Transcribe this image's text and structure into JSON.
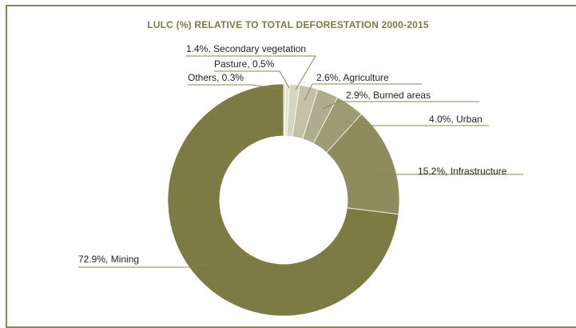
{
  "chart_data": {
    "type": "pie",
    "title": "LULC (%) RELATIVE TO TOTAL DEFORESTATION 2000-2015",
    "slices": [
      {
        "label": "Mining",
        "value": 72.9,
        "text": "72.9%, Mining",
        "color": "#7c7b44"
      },
      {
        "label": "Infrastructure",
        "value": 15.2,
        "text": "15.2%, Infrastructure",
        "color": "#8c8c5c"
      },
      {
        "label": "Urban",
        "value": 4.0,
        "text": "4.0%, Urban",
        "color": "#9c9d72"
      },
      {
        "label": "Burned areas",
        "value": 2.9,
        "text": "2.9%, Burned areas",
        "color": "#adad8d"
      },
      {
        "label": "Agriculture",
        "value": 2.6,
        "text": "2.6%, Agriculture",
        "color": "#c3c2a6"
      },
      {
        "label": "Secondary vegetation",
        "value": 1.4,
        "text": "1.4%, Secondary vegetation",
        "color": "#d5d5c0"
      },
      {
        "label": "Pasture",
        "value": 0.5,
        "text": "Pasture, 0.5%",
        "color": "#e2e2d4"
      },
      {
        "label": "Others",
        "value": 0.3,
        "text": "Others, 0.3%",
        "color": "#d9d9c8"
      }
    ]
  }
}
